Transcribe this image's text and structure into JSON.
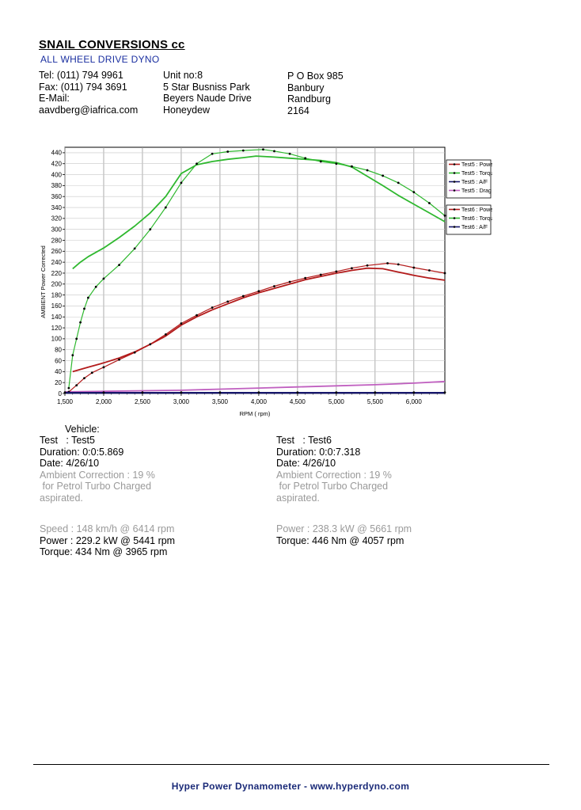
{
  "header": {
    "company": "SNAIL CONVERSIONS cc",
    "subtitle": "ALL WHEEL DRIVE DYNO",
    "contact": [
      "Tel: (011) 794 9961",
      "Fax: (011) 794 3691",
      "E-Mail:",
      "aavdberg@iafrica.com"
    ],
    "street": [
      "Unit no:8",
      "5 Star Busniss Park",
      "Beyers Naude Drive",
      "Honeydew"
    ],
    "postal": [
      "P O Box 985",
      "Banbury",
      "Randburg",
      "2164"
    ]
  },
  "colors": {
    "power": "#b31b1b",
    "torque": "#2fb82f",
    "af": "#16166b",
    "drag": "#c060c0",
    "marker": "#000000"
  },
  "chart_data": {
    "type": "line",
    "title": "",
    "xlabel": "RPM ( rpm)",
    "ylabel": "AMBIENT Power Corrected",
    "xlim": [
      1500,
      6400
    ],
    "ylim": [
      0,
      450
    ],
    "x_ticks": [
      1500,
      2000,
      2500,
      3000,
      3500,
      4000,
      4500,
      5000,
      5500,
      6000
    ],
    "x_tick_labels": [
      "1,500",
      "2,000",
      "2,500",
      "3,000",
      "3,500",
      "4,000",
      "4,500",
      "5,000",
      "5,500",
      "6,000"
    ],
    "y_ticks": [
      0,
      20,
      40,
      60,
      80,
      100,
      120,
      140,
      160,
      180,
      200,
      220,
      240,
      260,
      280,
      300,
      320,
      340,
      360,
      380,
      400,
      420,
      440
    ],
    "grid": true,
    "legend_position": "right",
    "legend_groups": [
      [
        "Test5 : Power",
        "Test5 : Torque",
        "Test5 : A/F",
        "Test5 : Drag"
      ],
      [
        "Test6 : Power",
        "Test6 : Torque",
        "Test6 : A/F"
      ]
    ],
    "series": [
      {
        "name": "Test5 : Power",
        "color_key": "power",
        "markers": false,
        "points": [
          [
            1600,
            40
          ],
          [
            1800,
            48
          ],
          [
            2000,
            56
          ],
          [
            2200,
            65
          ],
          [
            2400,
            76
          ],
          [
            2600,
            90
          ],
          [
            2800,
            105
          ],
          [
            3000,
            125
          ],
          [
            3200,
            140
          ],
          [
            3400,
            153
          ],
          [
            3600,
            164
          ],
          [
            3800,
            175
          ],
          [
            4000,
            184
          ],
          [
            4200,
            192
          ],
          [
            4400,
            200
          ],
          [
            4600,
            208
          ],
          [
            4800,
            214
          ],
          [
            5000,
            220
          ],
          [
            5200,
            225
          ],
          [
            5400,
            229
          ],
          [
            5600,
            228
          ],
          [
            5800,
            222
          ],
          [
            6000,
            216
          ],
          [
            6200,
            211
          ],
          [
            6400,
            207
          ]
        ]
      },
      {
        "name": "Test5 : Torque",
        "color_key": "torque",
        "markers": false,
        "points": [
          [
            1600,
            228
          ],
          [
            1700,
            240
          ],
          [
            1800,
            250
          ],
          [
            1900,
            258
          ],
          [
            2000,
            266
          ],
          [
            2200,
            285
          ],
          [
            2400,
            306
          ],
          [
            2600,
            330
          ],
          [
            2800,
            360
          ],
          [
            3000,
            402
          ],
          [
            3200,
            418
          ],
          [
            3400,
            424
          ],
          [
            3600,
            428
          ],
          [
            3800,
            431
          ],
          [
            3965,
            434
          ],
          [
            4200,
            432
          ],
          [
            4400,
            430
          ],
          [
            4600,
            428
          ],
          [
            4800,
            426
          ],
          [
            5000,
            422
          ],
          [
            5200,
            414
          ],
          [
            5400,
            397
          ],
          [
            5600,
            380
          ],
          [
            5800,
            362
          ],
          [
            6000,
            346
          ],
          [
            6200,
            330
          ],
          [
            6400,
            314
          ]
        ]
      },
      {
        "name": "Test5 : A/F",
        "color_key": "af",
        "markers": false,
        "points": [
          [
            1500,
            1
          ],
          [
            2000,
            1
          ],
          [
            2500,
            1
          ],
          [
            3000,
            1
          ],
          [
            3500,
            1
          ],
          [
            4000,
            1
          ],
          [
            4500,
            1
          ],
          [
            5000,
            1
          ],
          [
            5500,
            1
          ],
          [
            6000,
            1
          ],
          [
            6400,
            1
          ]
        ]
      },
      {
        "name": "Test5 : Drag",
        "color_key": "drag",
        "markers": false,
        "points": [
          [
            1500,
            3
          ],
          [
            2000,
            4
          ],
          [
            2500,
            5
          ],
          [
            3000,
            6
          ],
          [
            3500,
            8
          ],
          [
            4000,
            10
          ],
          [
            4500,
            12
          ],
          [
            5000,
            14
          ],
          [
            5500,
            16
          ],
          [
            6000,
            19
          ],
          [
            6400,
            22
          ]
        ]
      },
      {
        "name": "Test6 : Power",
        "color_key": "power",
        "markers": true,
        "points": [
          [
            1550,
            3
          ],
          [
            1650,
            15
          ],
          [
            1750,
            28
          ],
          [
            1850,
            38
          ],
          [
            2000,
            48
          ],
          [
            2200,
            62
          ],
          [
            2400,
            75
          ],
          [
            2600,
            90
          ],
          [
            2800,
            108
          ],
          [
            3000,
            128
          ],
          [
            3200,
            143
          ],
          [
            3400,
            157
          ],
          [
            3600,
            168
          ],
          [
            3800,
            178
          ],
          [
            4000,
            187
          ],
          [
            4200,
            196
          ],
          [
            4400,
            204
          ],
          [
            4600,
            211
          ],
          [
            4800,
            217
          ],
          [
            5000,
            223
          ],
          [
            5200,
            229
          ],
          [
            5400,
            234
          ],
          [
            5661,
            238
          ],
          [
            5800,
            236
          ],
          [
            6000,
            230
          ],
          [
            6200,
            225
          ],
          [
            6400,
            220
          ]
        ]
      },
      {
        "name": "Test6 : Torque",
        "color_key": "torque",
        "markers": true,
        "points": [
          [
            1550,
            10
          ],
          [
            1600,
            70
          ],
          [
            1650,
            100
          ],
          [
            1700,
            130
          ],
          [
            1750,
            155
          ],
          [
            1800,
            175
          ],
          [
            1900,
            195
          ],
          [
            2000,
            210
          ],
          [
            2200,
            235
          ],
          [
            2400,
            265
          ],
          [
            2600,
            300
          ],
          [
            2800,
            340
          ],
          [
            3000,
            385
          ],
          [
            3200,
            420
          ],
          [
            3400,
            438
          ],
          [
            3600,
            442
          ],
          [
            3800,
            444
          ],
          [
            4057,
            446
          ],
          [
            4200,
            443
          ],
          [
            4400,
            438
          ],
          [
            4600,
            430
          ],
          [
            4800,
            424
          ],
          [
            5000,
            420
          ],
          [
            5200,
            415
          ],
          [
            5400,
            408
          ],
          [
            5600,
            398
          ],
          [
            5800,
            385
          ],
          [
            6000,
            368
          ],
          [
            6200,
            348
          ],
          [
            6400,
            325
          ]
        ]
      },
      {
        "name": "Test6 : A/F",
        "color_key": "af",
        "markers": true,
        "points": [
          [
            1500,
            2
          ],
          [
            2000,
            2
          ],
          [
            2500,
            2
          ],
          [
            3000,
            2
          ],
          [
            3500,
            2
          ],
          [
            4000,
            2
          ],
          [
            4500,
            2
          ],
          [
            5000,
            2
          ],
          [
            5500,
            2
          ],
          [
            6000,
            2
          ],
          [
            6400,
            2
          ]
        ]
      }
    ]
  },
  "results": {
    "vehicle_label": "Vehicle:",
    "test5": {
      "test": "Test   : Test5",
      "duration": "Duration: 0:0:5.869",
      "date": "Date:  4/26/10",
      "correction": "Ambient Correction : 19 %",
      "correction2": " for Petrol Turbo Charged",
      "correction3": "aspirated.",
      "speed": "Speed : 148 km/h @ 6414 rpm",
      "power": "Power : 229.2 kW @ 5441 rpm",
      "torque": "Torque: 434 Nm @ 3965 rpm"
    },
    "test6": {
      "test": "Test   : Test6",
      "duration": "Duration: 0:0:7.318",
      "date": "Date:  4/26/10",
      "correction": "Ambient Correction : 19 %",
      "correction2": " for Petrol Turbo Charged",
      "correction3": "aspirated.",
      "power": "Power : 238.3 kW @ 5661 rpm",
      "torque": "Torque: 446 Nm @ 4057 rpm"
    }
  },
  "footer": "Hyper Power Dynamometer  -  www.hyperdyno.com"
}
